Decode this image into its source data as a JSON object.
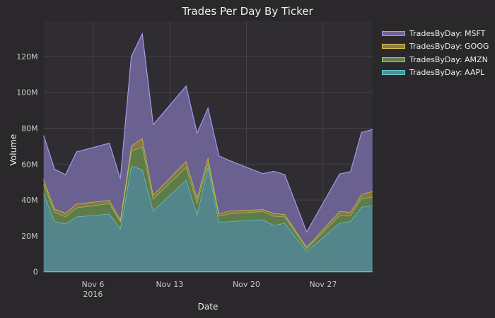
{
  "chart_data": {
    "type": "area",
    "stacked": true,
    "title": "Trades Per Day By Ticker",
    "xlabel": "Date",
    "ylabel": "Volume",
    "ylim": [
      0,
      140000000
    ],
    "yticks": [
      0,
      20000000,
      40000000,
      60000000,
      80000000,
      100000000,
      120000000
    ],
    "ytick_labels": [
      "0",
      "20M",
      "40M",
      "60M",
      "80M",
      "100M",
      "120M"
    ],
    "xticks": [
      {
        "day": 6,
        "label": "Nov 6",
        "sublabel": "2016"
      },
      {
        "day": 13,
        "label": "Nov 13"
      },
      {
        "day": 20,
        "label": "Nov 20"
      },
      {
        "day": 27,
        "label": "Nov 27"
      }
    ],
    "x_days": [
      1,
      2,
      3,
      4,
      7,
      8,
      9,
      10,
      11,
      14,
      15,
      16,
      17,
      18,
      21,
      22,
      23,
      25,
      28,
      29,
      30,
      31
    ],
    "x_dates": [
      "2016-11-01",
      "2016-11-02",
      "2016-11-03",
      "2016-11-04",
      "2016-11-07",
      "2016-11-08",
      "2016-11-09",
      "2016-11-10",
      "2016-11-11",
      "2016-11-14",
      "2016-11-15",
      "2016-11-16",
      "2016-11-17",
      "2016-11-18",
      "2016-11-21",
      "2016-11-22",
      "2016-11-23",
      "2016-11-25",
      "2016-11-28",
      "2016-11-29",
      "2016-11-30",
      "2016-12-01"
    ],
    "grid": true,
    "legend_position": "top-right",
    "series": [
      {
        "name": "TradesByDay: AAPL",
        "line": "#5fd0d8",
        "fill": "#558a8f",
        "values": [
          43.8,
          28.1,
          26.8,
          30.7,
          32.3,
          24.1,
          59.1,
          57.0,
          34.1,
          51.1,
          32.0,
          58.7,
          27.6,
          28.1,
          29.1,
          25.9,
          27.2,
          11.4,
          27.2,
          28.2,
          36.1,
          37.0
        ]
      },
      {
        "name": "TradesByDay: AMZN",
        "line": "#8fd35a",
        "fill": "#62804c",
        "values": [
          5.0,
          5.2,
          3.9,
          5.0,
          5.8,
          4.0,
          8.3,
          12.6,
          6.6,
          7.2,
          6.6,
          2.6,
          3.5,
          4.3,
          4.6,
          5.2,
          3.5,
          1.6,
          4.3,
          3.2,
          4.8,
          4.6
        ]
      },
      {
        "name": "TradesByDay: GOOG",
        "line": "#e8c84a",
        "fill": "#8c7c48",
        "values": [
          2.6,
          1.7,
          2.1,
          2.2,
          1.8,
          1.0,
          2.8,
          4.8,
          2.2,
          3.4,
          2.6,
          2.4,
          1.3,
          1.6,
          1.1,
          1.6,
          1.3,
          0.8,
          2.2,
          1.9,
          2.3,
          3.3
        ]
      },
      {
        "name": "TradesByDay: MSFT",
        "line": "#a898ec",
        "fill": "#6e6496",
        "values": [
          24.6,
          22.2,
          21.3,
          28.9,
          31.8,
          22.7,
          49.8,
          58.2,
          39.1,
          41.8,
          36.1,
          27.5,
          32.2,
          27.9,
          19.9,
          23.3,
          22.1,
          8.4,
          20.8,
          22.5,
          34.5,
          34.4
        ]
      }
    ],
    "value_unit": "millions"
  }
}
